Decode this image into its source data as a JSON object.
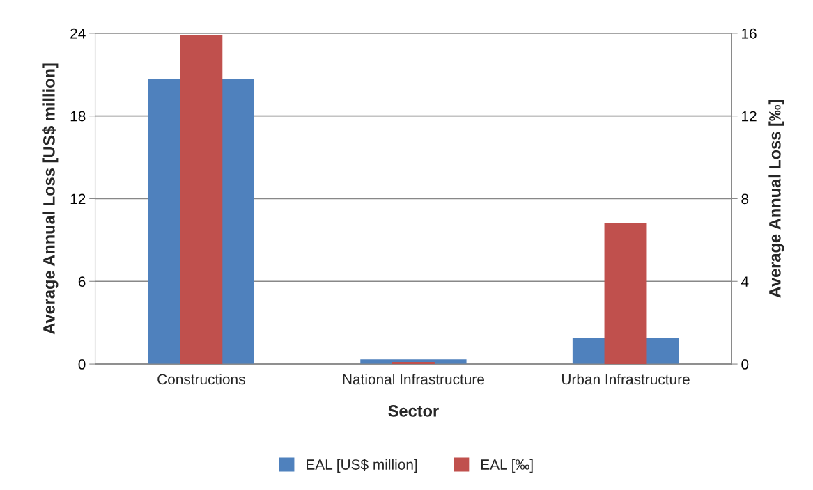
{
  "chart_data": {
    "type": "bar",
    "xlabel": "Sector",
    "ylabel": "Average Annual Loss [US$ million]",
    "y2label": "Average Annual Loss [‰]",
    "categories": [
      "Constructions",
      "National Infrastructure",
      "Urban Infrastructure"
    ],
    "series": [
      {
        "name": "EAL [US$ million]",
        "color": "#4f81bd",
        "values": [
          20.7,
          0.35,
          1.9
        ]
      },
      {
        "name": "EAL [‰]",
        "color": "#c0504d",
        "values": [
          15.9,
          0.1,
          6.8
        ],
        "axis": "y2"
      }
    ],
    "ylim": [
      0,
      24
    ],
    "yticks": [
      0,
      6,
      12,
      18,
      24
    ],
    "y2lim": [
      0,
      16
    ],
    "y2ticks": [
      0,
      4,
      8,
      12,
      16
    ],
    "grid": "y",
    "legend": "bottom"
  }
}
